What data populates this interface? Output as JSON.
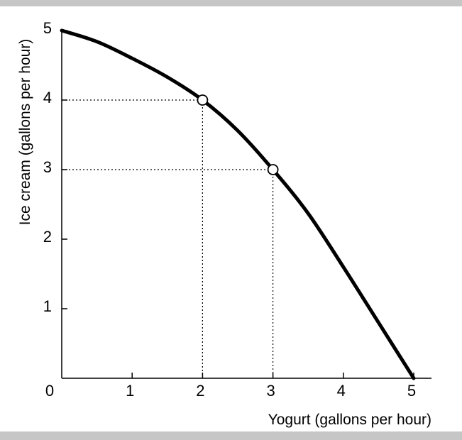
{
  "chart_data": {
    "type": "line",
    "title": "",
    "xlabel": "Yogurt (gallons per hour)",
    "ylabel": "Ice cream (gallons per hour)",
    "xlim": [
      0,
      5
    ],
    "ylim": [
      0,
      5
    ],
    "x_ticks": [
      "0",
      "1",
      "2",
      "3",
      "4",
      "5"
    ],
    "y_ticks": [
      "1",
      "2",
      "3",
      "4",
      "5"
    ],
    "grid": false,
    "series": [
      {
        "x": [
          0,
          0.5,
          1,
          1.5,
          2,
          2.5,
          3,
          3.5,
          4,
          4.5,
          5
        ],
        "y": [
          5,
          4.84,
          4.6,
          4.33,
          4,
          3.56,
          3,
          2.37,
          1.6,
          0.8,
          0
        ],
        "color": "#000000"
      }
    ],
    "highlighted_points": [
      {
        "x": 2,
        "y": 4
      },
      {
        "x": 3,
        "y": 3
      }
    ],
    "reference_lines_style": "dotted"
  }
}
